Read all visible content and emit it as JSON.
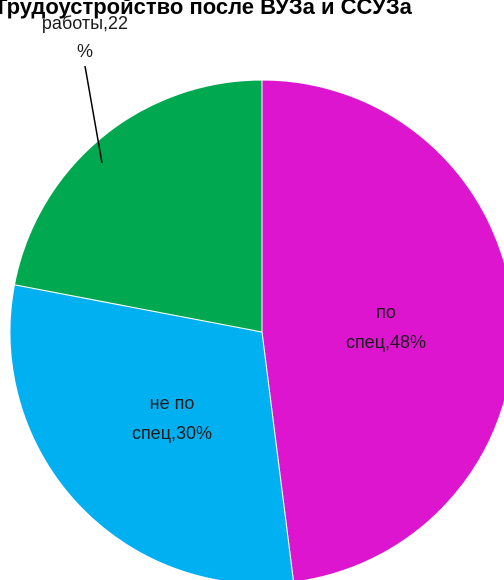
{
  "chart_data": {
    "type": "pie",
    "title": "Трудоустройство после ВУЗа и ССУЗа",
    "slices": [
      {
        "name": "по спец",
        "value": 48,
        "label_lines": [
          "по",
          "спец,48%"
        ],
        "color": "#dd15cf"
      },
      {
        "name": "не по спец",
        "value": 30,
        "label_lines": [
          "не по",
          "спец,30%"
        ],
        "color": "#00b0f0"
      },
      {
        "name": "нет работы",
        "value": 22,
        "label_lines": [
          "работы,22",
          "%"
        ],
        "color": "#00a850"
      }
    ],
    "start_angle_deg": 0,
    "direction": "clockwise"
  }
}
